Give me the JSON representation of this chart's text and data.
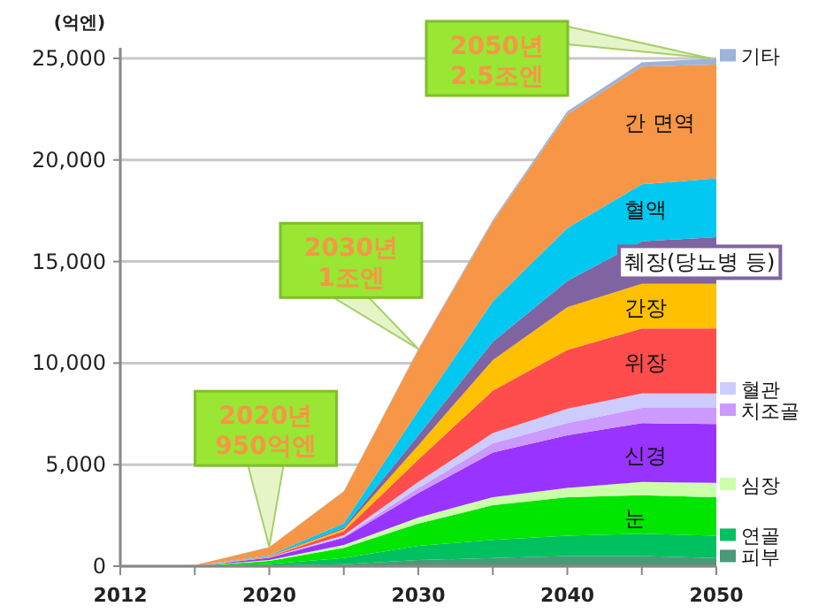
{
  "chart_data": {
    "type": "area",
    "stacked": true,
    "ylabel": "(억엔)",
    "categories": [
      "2012",
      null,
      "2020",
      null,
      "2030",
      null,
      "2040",
      null,
      "2050"
    ],
    "ylim": [
      0,
      25000
    ],
    "yticks": [
      0,
      {
        "value": 5000,
        "label": "5,000"
      },
      {
        "value": 10000,
        "label": "10,000"
      },
      {
        "value": 15000,
        "label": "15,000"
      },
      {
        "value": 20000,
        "label": "20,000"
      },
      {
        "value": 25000,
        "label": "25,000"
      }
    ],
    "grid": "y",
    "legend": "right",
    "annotations": [
      {
        "text": "2020년\n950억엔",
        "x": "2020",
        "y": 950
      },
      {
        "text": "2030년\n1조엔",
        "x": "2030",
        "y": 10700
      },
      {
        "text": "2050년\n2.5조엔",
        "x": "2050",
        "y": 25000
      }
    ],
    "series": [
      {
        "name": "피부",
        "color": "#4a9a78",
        "values": [
          0,
          0,
          30,
          100,
          300,
          400,
          500,
          500,
          400
        ]
      },
      {
        "name": "연골",
        "color": "#00c060",
        "values": [
          0,
          0,
          80,
          300,
          700,
          900,
          1000,
          1100,
          1100
        ]
      },
      {
        "name": "눈",
        "color": "#00e600",
        "values": [
          0,
          10,
          150,
          500,
          1100,
          1700,
          1900,
          1900,
          1900
        ]
      },
      {
        "name": "심장",
        "color": "#ccffaa",
        "values": [
          0,
          0,
          50,
          150,
          300,
          400,
          450,
          650,
          700
        ]
      },
      {
        "name": "신경",
        "color": "#9933ff",
        "values": [
          0,
          0,
          100,
          350,
          1200,
          2200,
          2600,
          2900,
          2900
        ]
      },
      {
        "name": "치조골",
        "color": "#cc99ff",
        "values": [
          0,
          0,
          10,
          50,
          250,
          450,
          600,
          750,
          800
        ]
      },
      {
        "name": "혈관",
        "color": "#ccccff",
        "values": [
          0,
          0,
          20,
          80,
          300,
          500,
          700,
          700,
          700
        ]
      },
      {
        "name": "위장",
        "color": "#ff4d4d",
        "values": [
          0,
          0,
          30,
          200,
          1100,
          2100,
          2900,
          3200,
          3200
        ]
      },
      {
        "name": "간장",
        "color": "#ffc000",
        "values": [
          0,
          0,
          20,
          100,
          700,
          1500,
          2100,
          2200,
          2200
        ]
      },
      {
        "name": "췌장(당뇨병 등)",
        "color": "#8064a2",
        "values": [
          0,
          0,
          10,
          80,
          500,
          900,
          1300,
          2100,
          2300
        ]
      },
      {
        "name": "혈액",
        "color": "#00c8f0",
        "values": [
          0,
          0,
          50,
          200,
          1200,
          2000,
          2600,
          2800,
          2900
        ]
      },
      {
        "name": "간 면역",
        "color": "#f79646",
        "values": [
          0,
          40,
          390,
          1570,
          3000,
          3900,
          5600,
          5800,
          5600
        ]
      },
      {
        "name": "기타",
        "color": "#9db3d8",
        "values": [
          0,
          0,
          10,
          20,
          50,
          100,
          150,
          200,
          300
        ]
      }
    ]
  }
}
